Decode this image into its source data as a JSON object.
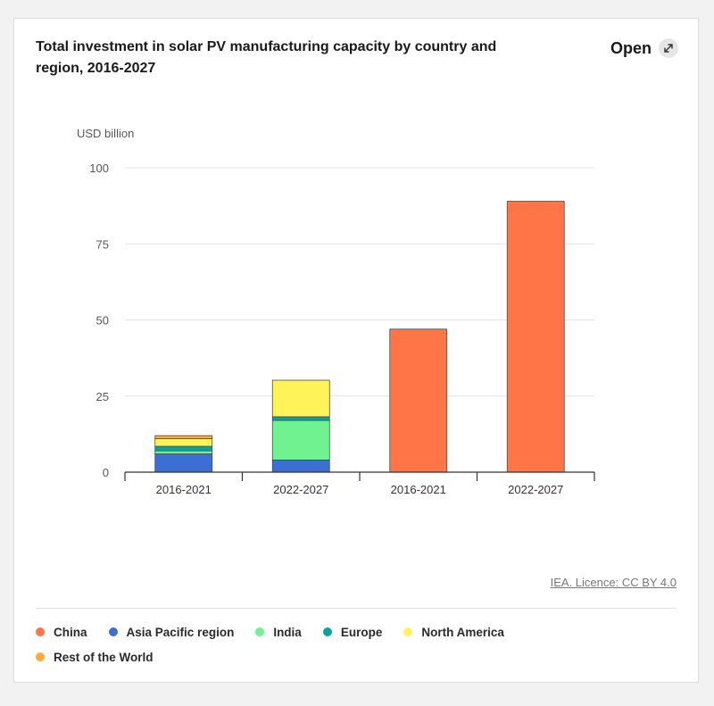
{
  "header": {
    "title": "Total investment in solar PV manufacturing capacity by country and region, 2016-2027",
    "open_label": "Open",
    "open_icon": "expand-arrow-icon"
  },
  "footer": {
    "credit": "IEA. Licence: CC BY 4.0"
  },
  "chart_data": {
    "type": "bar",
    "stacked": true,
    "title": "Total investment in solar PV manufacturing capacity by country and region, 2016-2027",
    "ylabel": "USD billion",
    "xlabel": "",
    "ylim": [
      0,
      100
    ],
    "yticks": [
      0,
      25,
      50,
      75,
      100
    ],
    "grid": true,
    "legend_position": "bottom",
    "categories": [
      "2016-2021",
      "2022-2027",
      "2016-2021",
      "2022-2027"
    ],
    "series": [
      {
        "name": "China",
        "color": "#ff7548",
        "values": [
          0,
          0,
          47,
          89
        ]
      },
      {
        "name": "Asia Pacific region",
        "color": "#3b6fd4",
        "values": [
          6,
          4,
          0,
          0
        ]
      },
      {
        "name": "India",
        "color": "#6ff28f",
        "values": [
          1,
          13,
          0,
          0
        ]
      },
      {
        "name": "Europe",
        "color": "#0aa39b",
        "values": [
          1.5,
          1.2,
          0,
          0
        ]
      },
      {
        "name": "North America",
        "color": "#fff35a",
        "values": [
          2.5,
          12,
          0,
          0
        ]
      },
      {
        "name": "Rest of the World",
        "color": "#f9ac3c",
        "values": [
          1,
          0,
          0,
          0
        ]
      }
    ]
  }
}
